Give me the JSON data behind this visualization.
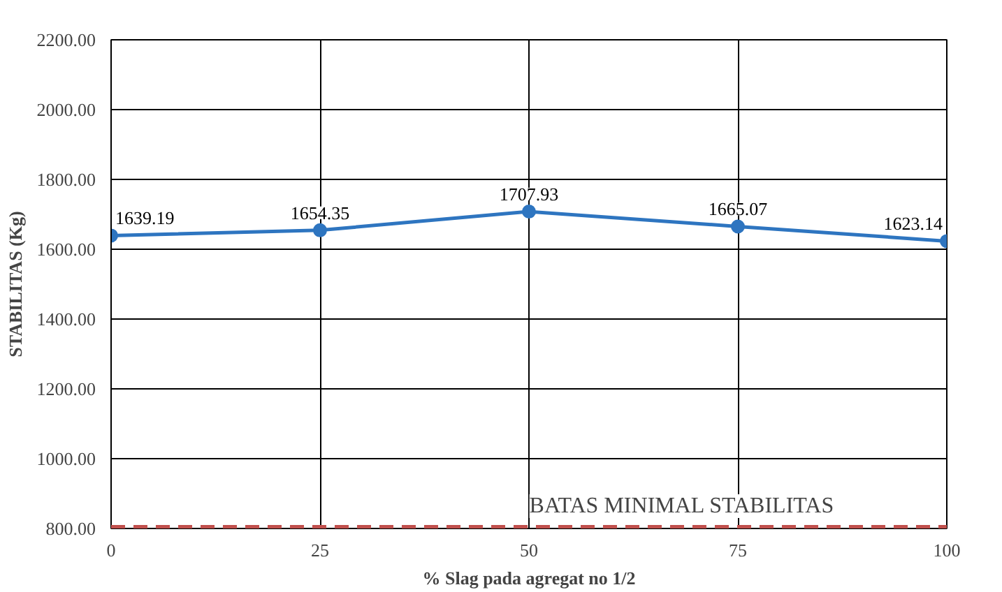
{
  "chart_data": {
    "type": "line",
    "xlabel": "% Slag pada agregat no 1/2",
    "ylabel": "STABILITAS (Kg)",
    "x": [
      0,
      25,
      50,
      75,
      100
    ],
    "series": [
      {
        "color": "#2e75c0",
        "values": [
          1639.19,
          1654.35,
          1707.93,
          1665.07,
          1623.14
        ]
      }
    ],
    "data_labels": true,
    "marker": "circle",
    "line_style": "solid",
    "grid": true,
    "xlim": [
      0,
      100
    ],
    "xticks": [
      0,
      25,
      50,
      75,
      100
    ],
    "ylim": [
      800,
      2200
    ],
    "yticks": [
      {
        "value": 800,
        "label": "800.00"
      },
      {
        "value": 1000,
        "label": "1000.00"
      },
      {
        "value": 1200,
        "label": "1200.00"
      },
      {
        "value": 1400,
        "label": "1400.00"
      },
      {
        "value": 1600,
        "label": "1600.00"
      },
      {
        "value": 1800,
        "label": "1800.00"
      },
      {
        "value": 2000,
        "label": "2000.00"
      },
      {
        "value": 2200,
        "label": "2200.00"
      }
    ],
    "ref_lines": [
      {
        "axis": "y",
        "value": 800,
        "label": "BATAS MINIMAL STABILITAS",
        "color": "#c0504d",
        "line_style": "dashed"
      }
    ]
  }
}
